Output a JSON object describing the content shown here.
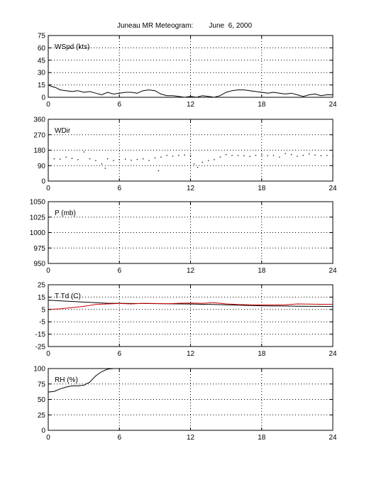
{
  "title": "Juneau MR Meteogram:        June  6, 2000",
  "chart_data": [
    {
      "type": "line",
      "label": "WSpd (kts)",
      "xlim": [
        0,
        24
      ],
      "xticks": [
        0,
        6,
        12,
        18,
        24
      ],
      "ylim": [
        0,
        75
      ],
      "yticks": [
        0,
        15,
        30,
        45,
        60,
        75
      ],
      "grid": true,
      "series": [
        {
          "color": "#000000",
          "x": [
            0,
            0.3,
            0.6,
            1,
            1.5,
            2,
            2.5,
            3,
            3.5,
            4,
            4.5,
            5,
            5.5,
            6,
            6.5,
            7,
            7.5,
            8,
            8.5,
            9,
            9.5,
            10,
            10.5,
            11,
            11.5,
            12,
            12.5,
            13,
            13.5,
            14,
            14.5,
            15,
            15.5,
            16,
            16.5,
            17,
            17.5,
            18,
            18.5,
            19,
            19.5,
            20,
            20.5,
            21,
            21.5,
            22,
            22.5,
            23,
            23.5,
            24
          ],
          "y": [
            15,
            13,
            12,
            9,
            8,
            7,
            8,
            6,
            7,
            5,
            3,
            6,
            4,
            5,
            6,
            6,
            5,
            8,
            9,
            8,
            4,
            2,
            2,
            1,
            0,
            1,
            0,
            2,
            1,
            0,
            2,
            6,
            8,
            9,
            9,
            8,
            7,
            6,
            5,
            6,
            5,
            4,
            5,
            3,
            1,
            3,
            4,
            2,
            3,
            3
          ]
        }
      ]
    },
    {
      "type": "scatter",
      "label": "WDir",
      "xlim": [
        0,
        24
      ],
      "xticks": [
        0,
        6,
        12,
        18,
        24
      ],
      "ylim": [
        0,
        360
      ],
      "yticks": [
        0,
        90,
        180,
        270,
        360
      ],
      "grid": true,
      "series": [
        {
          "color": "#000000",
          "x": [
            0,
            0.5,
            1,
            1.5,
            2,
            2.5,
            3,
            3.5,
            4,
            4.5,
            4.8,
            5,
            5.5,
            6,
            6.5,
            7,
            7.5,
            8,
            8.5,
            9,
            9.3,
            9.5,
            10,
            10.5,
            11,
            11.5,
            12,
            12.3,
            12.6,
            13,
            13.5,
            14,
            14.5,
            15,
            15.5,
            16,
            16.5,
            17,
            17.5,
            18,
            18.5,
            19,
            19.5,
            20,
            20.5,
            21,
            21.5,
            22,
            22.5,
            23,
            23.5,
            24
          ],
          "y": [
            135,
            130,
            128,
            140,
            132,
            125,
            170,
            130,
            120,
            100,
            75,
            130,
            120,
            125,
            128,
            122,
            126,
            130,
            120,
            135,
            60,
            140,
            150,
            145,
            150,
            152,
            148,
            100,
            80,
            110,
            120,
            125,
            140,
            155,
            150,
            150,
            148,
            145,
            150,
            152,
            148,
            150,
            140,
            160,
            155,
            145,
            150,
            158,
            152,
            148,
            150,
            145
          ]
        }
      ]
    },
    {
      "type": "line",
      "label": "P (mb)",
      "xlim": [
        0,
        24
      ],
      "xticks": [
        0,
        6,
        12,
        18,
        24
      ],
      "ylim": [
        950,
        1050
      ],
      "yticks": [
        950,
        975,
        1000,
        1025,
        1050
      ],
      "grid": true,
      "series": []
    },
    {
      "type": "line",
      "label": "T Td (C)",
      "xlim": [
        0,
        24
      ],
      "xticks": [
        0,
        6,
        12,
        18,
        24
      ],
      "ylim": [
        -25,
        25
      ],
      "yticks": [
        -25,
        -15,
        -5,
        5,
        15,
        25
      ],
      "grid": true,
      "series": [
        {
          "color": "#000000",
          "x": [
            0,
            1,
            2,
            3,
            4,
            5,
            6,
            7,
            8,
            9,
            10,
            11,
            12,
            13,
            14,
            15,
            16,
            17,
            18,
            19,
            20,
            21,
            22,
            23,
            24
          ],
          "y": [
            12.5,
            12,
            11.5,
            11,
            10.5,
            10,
            10,
            9.8,
            9.8,
            9.7,
            9.6,
            9.5,
            9.4,
            9.2,
            9,
            8.8,
            8.5,
            8.2,
            8,
            7.8,
            7.8,
            7.6,
            7.5,
            7.5,
            7.4
          ]
        },
        {
          "color": "#cc0000",
          "x": [
            0,
            1,
            2,
            3,
            4,
            5,
            6,
            7,
            8,
            9,
            10,
            11,
            12,
            13,
            14,
            15,
            16,
            17,
            18,
            19,
            20,
            21,
            22,
            23,
            24
          ],
          "y": [
            5,
            5.5,
            6.5,
            7.5,
            9,
            9.5,
            9.8,
            9.5,
            10,
            9.8,
            9.6,
            10,
            10.2,
            10,
            10.5,
            9.5,
            9,
            8.8,
            8.7,
            8.6,
            8.8,
            9.5,
            9.3,
            9.2,
            9.2
          ]
        }
      ]
    },
    {
      "type": "line",
      "label": "RH (%)",
      "xlim": [
        0,
        24
      ],
      "xticks": [
        0,
        6,
        12,
        18,
        24
      ],
      "ylim": [
        0,
        100
      ],
      "yticks": [
        0,
        25,
        50,
        75,
        100
      ],
      "grid": true,
      "series": [
        {
          "color": "#000000",
          "x": [
            0,
            0.5,
            1,
            1.5,
            2,
            2.5,
            3,
            3.5,
            4,
            4.5,
            5,
            5.5,
            6
          ],
          "y": [
            62,
            63,
            67,
            70,
            72,
            72,
            73,
            78,
            88,
            95,
            99,
            100,
            100
          ]
        }
      ]
    }
  ]
}
